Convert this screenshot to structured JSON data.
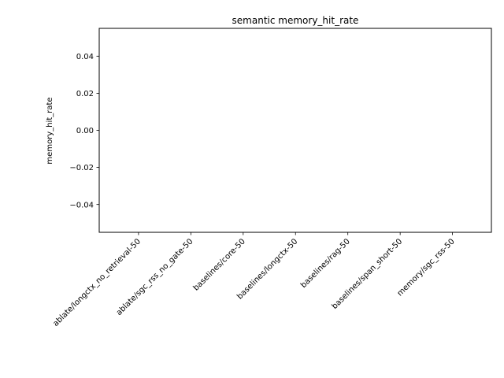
{
  "chart_data": {
    "type": "bar",
    "title": "semantic memory_hit_rate",
    "xlabel": "",
    "ylabel": "memory_hit_rate",
    "categories": [
      "ablate/longctx_no_retrieval-50",
      "ablate/sgc_rss_no_gate-50",
      "baselines/core-50",
      "baselines/longctx-50",
      "baselines/rag-50",
      "baselines/span_short-50",
      "memory/sgc_rss-50"
    ],
    "values": [
      0,
      0,
      0,
      0,
      0,
      0,
      0
    ],
    "ylim": [
      -0.055,
      0.055
    ],
    "yticks": [
      -0.04,
      -0.02,
      0.0,
      0.02,
      0.04
    ],
    "ytick_labels": [
      "−0.04",
      "−0.02",
      "0.00",
      "0.02",
      "0.04"
    ],
    "grid": false,
    "legend": "none",
    "colors": {
      "axis": "#000000",
      "bar": "#1f77b4",
      "background": "#ffffff"
    }
  }
}
